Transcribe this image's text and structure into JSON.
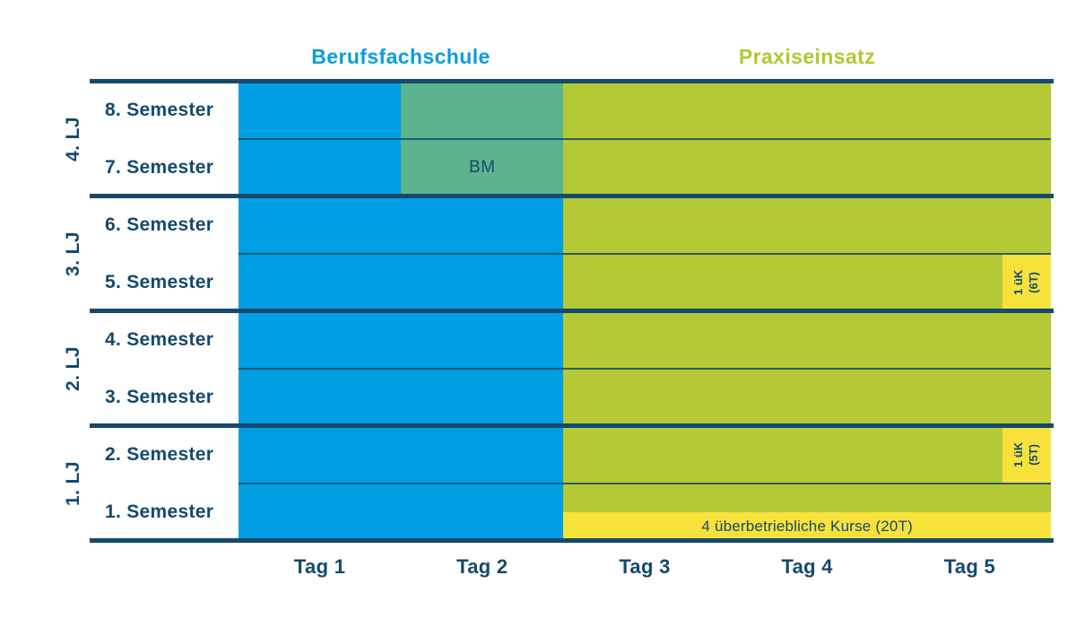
{
  "colors": {
    "berufsfachschule_blue": "#009ee2",
    "bm_teal": "#5bb48e",
    "praxiseinsatz_green": "#b5c936",
    "uek_yellow": "#f7e23c",
    "line_text_dark_blue": "#15496d",
    "header_blue_text": "#0a9ddc",
    "header_green_text": "#b2c832",
    "background": "#ffffff"
  },
  "header": {
    "berufsfachschule": "Berufsfachschule",
    "praxiseinsatz": "Praxiseinsatz"
  },
  "chart_data": {
    "type": "table",
    "x_ticks": [
      "Tag 1",
      "Tag 2",
      "Tag 3",
      "Tag 4",
      "Tag 5"
    ],
    "column_headers": [
      {
        "label": "Berufsfachschule",
        "day_start": 0,
        "day_end": 2,
        "color_key": "header_blue_text"
      },
      {
        "label": "Praxiseinsatz",
        "day_start": 2,
        "day_end": 5,
        "color_key": "header_green_text"
      }
    ],
    "row_groups": [
      {
        "label": "4. LJ",
        "rows": [
          "8. Semester",
          "7. Semester"
        ]
      },
      {
        "label": "3. LJ",
        "rows": [
          "6. Semester",
          "5. Semester"
        ]
      },
      {
        "label": "2. LJ",
        "rows": [
          "4. Semester",
          "3. Semester"
        ]
      },
      {
        "label": "1. LJ",
        "rows": [
          "2. Semester",
          "1. Semester"
        ]
      }
    ],
    "rows": [
      {
        "label": "8. Semester",
        "group": "4. LJ",
        "segments": [
          {
            "name": "Berufsfachschule",
            "day_start": 0,
            "day_end": 1,
            "color_key": "berufsfachschule_blue",
            "text": ""
          },
          {
            "name": "BM",
            "day_start": 1,
            "day_end": 2,
            "color_key": "bm_teal",
            "text": ""
          },
          {
            "name": "Praxiseinsatz",
            "day_start": 2,
            "day_end": 5,
            "color_key": "praxiseinsatz_green",
            "text": ""
          }
        ]
      },
      {
        "label": "7. Semester",
        "group": "4. LJ",
        "segments": [
          {
            "name": "Berufsfachschule",
            "day_start": 0,
            "day_end": 1,
            "color_key": "berufsfachschule_blue",
            "text": ""
          },
          {
            "name": "BM",
            "day_start": 1,
            "day_end": 2,
            "color_key": "bm_teal",
            "text": "BM"
          },
          {
            "name": "Praxiseinsatz",
            "day_start": 2,
            "day_end": 5,
            "color_key": "praxiseinsatz_green",
            "text": ""
          }
        ]
      },
      {
        "label": "6. Semester",
        "group": "3. LJ",
        "segments": [
          {
            "name": "Berufsfachschule",
            "day_start": 0,
            "day_end": 2,
            "color_key": "berufsfachschule_blue",
            "text": ""
          },
          {
            "name": "Praxiseinsatz",
            "day_start": 2,
            "day_end": 5,
            "color_key": "praxiseinsatz_green",
            "text": ""
          }
        ]
      },
      {
        "label": "5. Semester",
        "group": "3. LJ",
        "segments": [
          {
            "name": "Berufsfachschule",
            "day_start": 0,
            "day_end": 2,
            "color_key": "berufsfachschule_blue",
            "text": ""
          },
          {
            "name": "Praxiseinsatz",
            "day_start": 2,
            "day_end": 5,
            "color_key": "praxiseinsatz_green",
            "text": ""
          }
        ],
        "uek": {
          "lines": [
            "1 üK",
            "(6T)"
          ]
        }
      },
      {
        "label": "4. Semester",
        "group": "2. LJ",
        "segments": [
          {
            "name": "Berufsfachschule",
            "day_start": 0,
            "day_end": 2,
            "color_key": "berufsfachschule_blue",
            "text": ""
          },
          {
            "name": "Praxiseinsatz",
            "day_start": 2,
            "day_end": 5,
            "color_key": "praxiseinsatz_green",
            "text": ""
          }
        ]
      },
      {
        "label": "3. Semester",
        "group": "2. LJ",
        "segments": [
          {
            "name": "Berufsfachschule",
            "day_start": 0,
            "day_end": 2,
            "color_key": "berufsfachschule_blue",
            "text": ""
          },
          {
            "name": "Praxiseinsatz",
            "day_start": 2,
            "day_end": 5,
            "color_key": "praxiseinsatz_green",
            "text": ""
          }
        ]
      },
      {
        "label": "2. Semester",
        "group": "1. LJ",
        "segments": [
          {
            "name": "Berufsfachschule",
            "day_start": 0,
            "day_end": 2,
            "color_key": "berufsfachschule_blue",
            "text": ""
          },
          {
            "name": "Praxiseinsatz",
            "day_start": 2,
            "day_end": 5,
            "color_key": "praxiseinsatz_green",
            "text": ""
          }
        ],
        "uek": {
          "lines": [
            "1 üK",
            "(5T)"
          ]
        }
      },
      {
        "label": "1. Semester",
        "group": "1. LJ",
        "segments": [
          {
            "name": "Berufsfachschule",
            "day_start": 0,
            "day_end": 2,
            "color_key": "berufsfachschule_blue",
            "text": ""
          },
          {
            "name": "Praxiseinsatz",
            "day_start": 2,
            "day_end": 5,
            "color_key": "praxiseinsatz_green",
            "text": ""
          }
        ],
        "course_bar": {
          "text": "4 überbetriebliche Kurse (20T)",
          "day_start": 2,
          "day_end": 5
        }
      }
    ]
  }
}
